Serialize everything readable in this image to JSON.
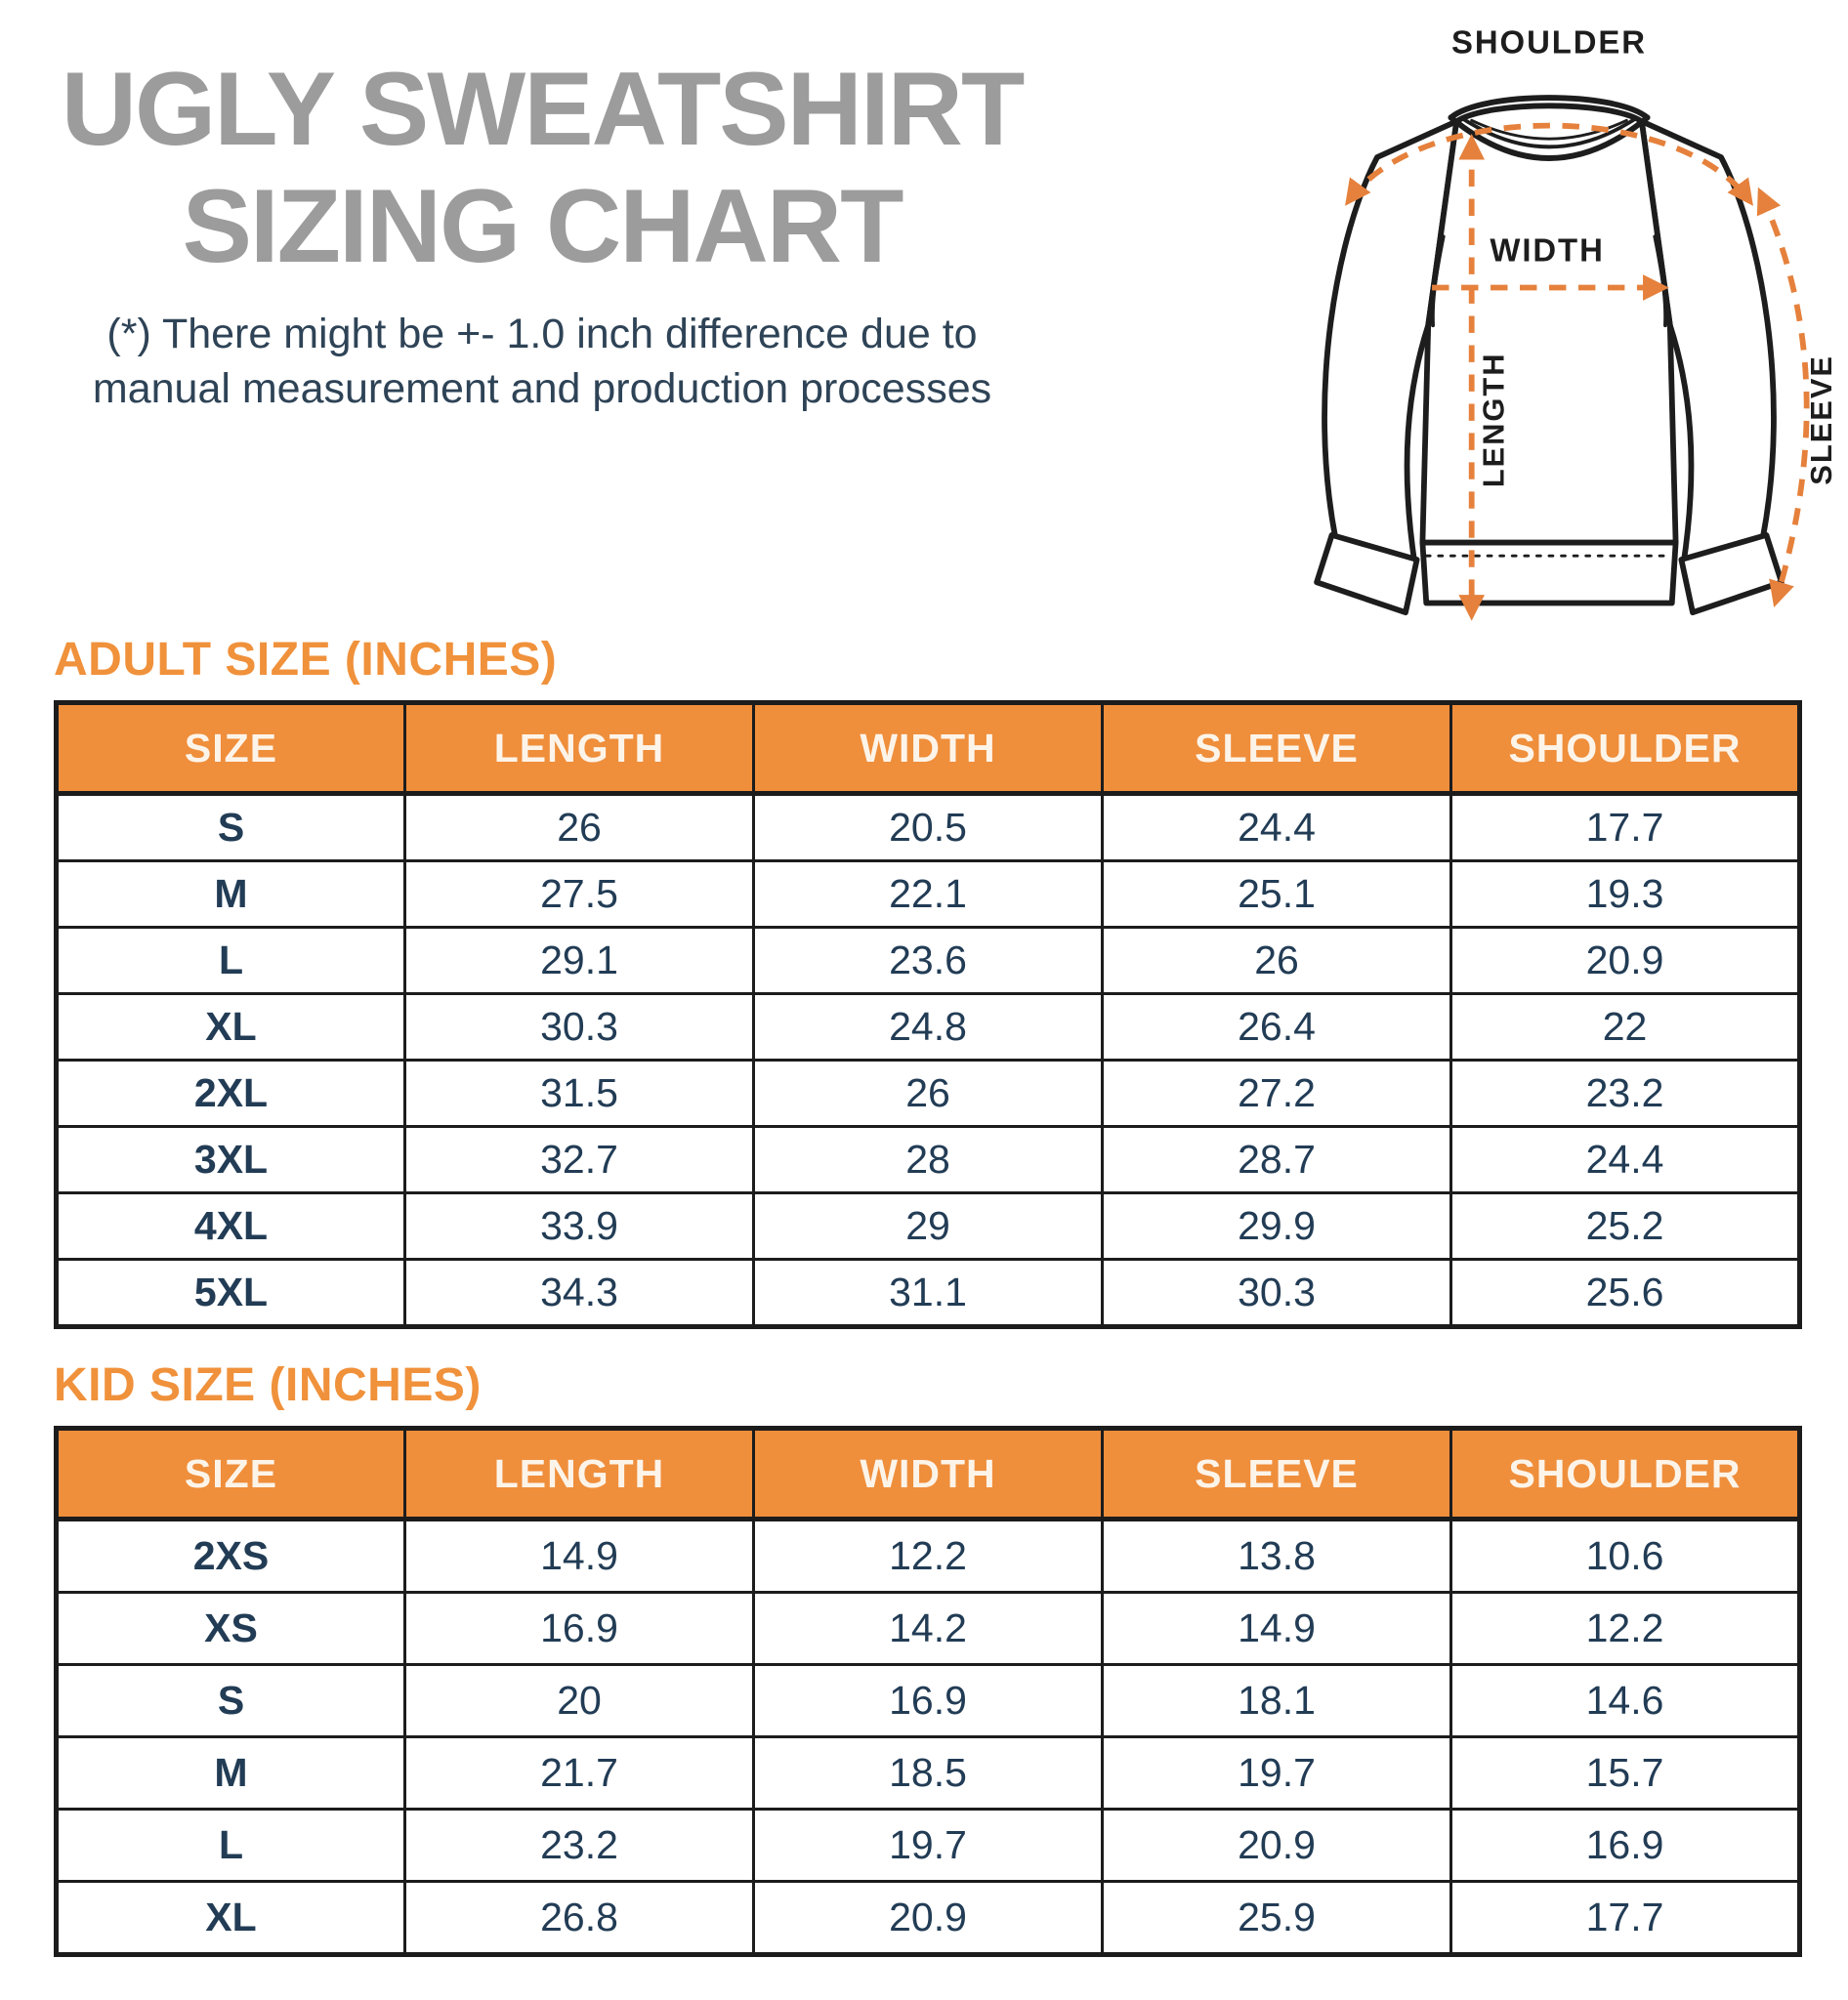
{
  "header": {
    "title_line1": "UGLY SWEATSHIRT",
    "title_line2": "SIZING CHART",
    "disclaimer_line1": "(*) There might be +- 1.0 inch difference due to",
    "disclaimer_line2": "manual measurement and production processes"
  },
  "diagram": {
    "labels": {
      "shoulder": "SHOULDER",
      "width": "WIDTH",
      "length": "LENGTH",
      "sleeve": "SLEEVE"
    }
  },
  "colors": {
    "accent_orange": "#ef8e3b",
    "arrow_orange": "#e5813c",
    "tint_peach": "#fcebde",
    "text_navy": "#223c55",
    "title_gray": "#9c9c9c",
    "grid_black": "#1c1c1c"
  },
  "adult_table": {
    "heading": "ADULT SIZE (INCHES)",
    "columns": [
      "SIZE",
      "LENGTH",
      "WIDTH",
      "SLEEVE",
      "SHOULDER"
    ],
    "rows": [
      {
        "size": "S",
        "values": [
          "26",
          "20.5",
          "24.4",
          "17.7"
        ]
      },
      {
        "size": "M",
        "values": [
          "27.5",
          "22.1",
          "25.1",
          "19.3"
        ]
      },
      {
        "size": "L",
        "values": [
          "29.1",
          "23.6",
          "26",
          "20.9"
        ]
      },
      {
        "size": "XL",
        "values": [
          "30.3",
          "24.8",
          "26.4",
          "22"
        ]
      },
      {
        "size": "2XL",
        "values": [
          "31.5",
          "26",
          "27.2",
          "23.2"
        ]
      },
      {
        "size": "3XL",
        "values": [
          "32.7",
          "28",
          "28.7",
          "24.4"
        ]
      },
      {
        "size": "4XL",
        "values": [
          "33.9",
          "29",
          "29.9",
          "25.2"
        ]
      },
      {
        "size": "5XL",
        "values": [
          "34.3",
          "31.1",
          "30.3",
          "25.6"
        ]
      }
    ]
  },
  "kid_table": {
    "heading": "KID SIZE (INCHES)",
    "columns": [
      "SIZE",
      "LENGTH",
      "WIDTH",
      "SLEEVE",
      "SHOULDER"
    ],
    "rows": [
      {
        "size": "2XS",
        "values": [
          "14.9",
          "12.2",
          "13.8",
          "10.6"
        ]
      },
      {
        "size": "XS",
        "values": [
          "16.9",
          "14.2",
          "14.9",
          "12.2"
        ]
      },
      {
        "size": "S",
        "values": [
          "20",
          "16.9",
          "18.1",
          "14.6"
        ]
      },
      {
        "size": "M",
        "values": [
          "21.7",
          "18.5",
          "19.7",
          "15.7"
        ]
      },
      {
        "size": "L",
        "values": [
          "23.2",
          "19.7",
          "20.9",
          "16.9"
        ]
      },
      {
        "size": "XL",
        "values": [
          "26.8",
          "20.9",
          "25.9",
          "17.7"
        ]
      }
    ]
  },
  "chart_data": [
    {
      "type": "table",
      "title": "ADULT SIZE (INCHES)",
      "columns": [
        "SIZE",
        "LENGTH",
        "WIDTH",
        "SLEEVE",
        "SHOULDER"
      ],
      "rows": [
        [
          "S",
          26,
          20.5,
          24.4,
          17.7
        ],
        [
          "M",
          27.5,
          22.1,
          25.1,
          19.3
        ],
        [
          "L",
          29.1,
          23.6,
          26,
          20.9
        ],
        [
          "XL",
          30.3,
          24.8,
          26.4,
          22
        ],
        [
          "2XL",
          31.5,
          26,
          27.2,
          23.2
        ],
        [
          "3XL",
          32.7,
          28,
          28.7,
          24.4
        ],
        [
          "4XL",
          33.9,
          29,
          29.9,
          25.2
        ],
        [
          "5XL",
          34.3,
          31.1,
          30.3,
          25.6
        ]
      ]
    },
    {
      "type": "table",
      "title": "KID SIZE (INCHES)",
      "columns": [
        "SIZE",
        "LENGTH",
        "WIDTH",
        "SLEEVE",
        "SHOULDER"
      ],
      "rows": [
        [
          "2XS",
          14.9,
          12.2,
          13.8,
          10.6
        ],
        [
          "XS",
          16.9,
          14.2,
          14.9,
          12.2
        ],
        [
          "S",
          20,
          16.9,
          18.1,
          14.6
        ],
        [
          "M",
          21.7,
          18.5,
          19.7,
          15.7
        ],
        [
          "L",
          23.2,
          19.7,
          20.9,
          16.9
        ],
        [
          "XL",
          26.8,
          20.9,
          25.9,
          17.7
        ]
      ]
    }
  ]
}
